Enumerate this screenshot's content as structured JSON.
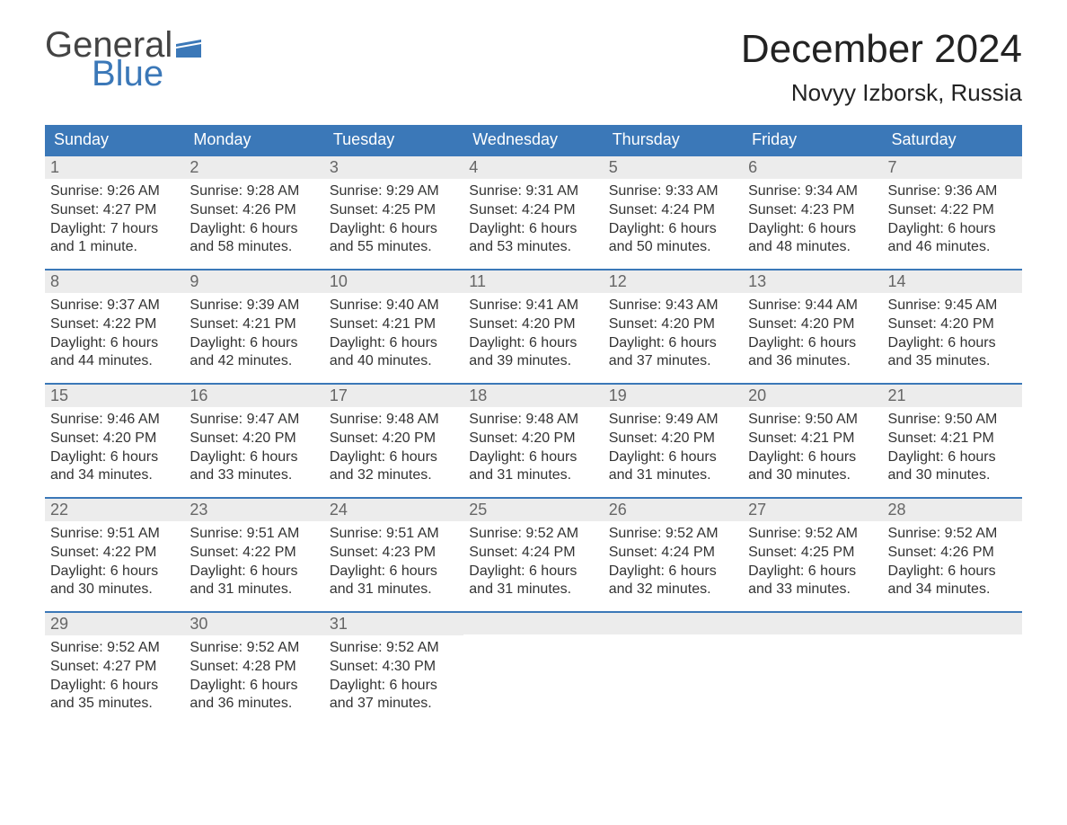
{
  "logo": {
    "text_top": "General",
    "text_bottom": "Blue",
    "flag_color": "#3b78b8"
  },
  "title": "December 2024",
  "location": "Novyy Izborsk, Russia",
  "colors": {
    "header_bg": "#3b78b8",
    "header_text": "#ffffff",
    "daynum_bg": "#ececec",
    "border": "#3b78b8",
    "body_text": "#333333"
  },
  "weekdays": [
    "Sunday",
    "Monday",
    "Tuesday",
    "Wednesday",
    "Thursday",
    "Friday",
    "Saturday"
  ],
  "weeks": [
    [
      {
        "n": "1",
        "sr": "9:26 AM",
        "ss": "4:27 PM",
        "dl": "7 hours and 1 minute."
      },
      {
        "n": "2",
        "sr": "9:28 AM",
        "ss": "4:26 PM",
        "dl": "6 hours and 58 minutes."
      },
      {
        "n": "3",
        "sr": "9:29 AM",
        "ss": "4:25 PM",
        "dl": "6 hours and 55 minutes."
      },
      {
        "n": "4",
        "sr": "9:31 AM",
        "ss": "4:24 PM",
        "dl": "6 hours and 53 minutes."
      },
      {
        "n": "5",
        "sr": "9:33 AM",
        "ss": "4:24 PM",
        "dl": "6 hours and 50 minutes."
      },
      {
        "n": "6",
        "sr": "9:34 AM",
        "ss": "4:23 PM",
        "dl": "6 hours and 48 minutes."
      },
      {
        "n": "7",
        "sr": "9:36 AM",
        "ss": "4:22 PM",
        "dl": "6 hours and 46 minutes."
      }
    ],
    [
      {
        "n": "8",
        "sr": "9:37 AM",
        "ss": "4:22 PM",
        "dl": "6 hours and 44 minutes."
      },
      {
        "n": "9",
        "sr": "9:39 AM",
        "ss": "4:21 PM",
        "dl": "6 hours and 42 minutes."
      },
      {
        "n": "10",
        "sr": "9:40 AM",
        "ss": "4:21 PM",
        "dl": "6 hours and 40 minutes."
      },
      {
        "n": "11",
        "sr": "9:41 AM",
        "ss": "4:20 PM",
        "dl": "6 hours and 39 minutes."
      },
      {
        "n": "12",
        "sr": "9:43 AM",
        "ss": "4:20 PM",
        "dl": "6 hours and 37 minutes."
      },
      {
        "n": "13",
        "sr": "9:44 AM",
        "ss": "4:20 PM",
        "dl": "6 hours and 36 minutes."
      },
      {
        "n": "14",
        "sr": "9:45 AM",
        "ss": "4:20 PM",
        "dl": "6 hours and 35 minutes."
      }
    ],
    [
      {
        "n": "15",
        "sr": "9:46 AM",
        "ss": "4:20 PM",
        "dl": "6 hours and 34 minutes."
      },
      {
        "n": "16",
        "sr": "9:47 AM",
        "ss": "4:20 PM",
        "dl": "6 hours and 33 minutes."
      },
      {
        "n": "17",
        "sr": "9:48 AM",
        "ss": "4:20 PM",
        "dl": "6 hours and 32 minutes."
      },
      {
        "n": "18",
        "sr": "9:48 AM",
        "ss": "4:20 PM",
        "dl": "6 hours and 31 minutes."
      },
      {
        "n": "19",
        "sr": "9:49 AM",
        "ss": "4:20 PM",
        "dl": "6 hours and 31 minutes."
      },
      {
        "n": "20",
        "sr": "9:50 AM",
        "ss": "4:21 PM",
        "dl": "6 hours and 30 minutes."
      },
      {
        "n": "21",
        "sr": "9:50 AM",
        "ss": "4:21 PM",
        "dl": "6 hours and 30 minutes."
      }
    ],
    [
      {
        "n": "22",
        "sr": "9:51 AM",
        "ss": "4:22 PM",
        "dl": "6 hours and 30 minutes."
      },
      {
        "n": "23",
        "sr": "9:51 AM",
        "ss": "4:22 PM",
        "dl": "6 hours and 31 minutes."
      },
      {
        "n": "24",
        "sr": "9:51 AM",
        "ss": "4:23 PM",
        "dl": "6 hours and 31 minutes."
      },
      {
        "n": "25",
        "sr": "9:52 AM",
        "ss": "4:24 PM",
        "dl": "6 hours and 31 minutes."
      },
      {
        "n": "26",
        "sr": "9:52 AM",
        "ss": "4:24 PM",
        "dl": "6 hours and 32 minutes."
      },
      {
        "n": "27",
        "sr": "9:52 AM",
        "ss": "4:25 PM",
        "dl": "6 hours and 33 minutes."
      },
      {
        "n": "28",
        "sr": "9:52 AM",
        "ss": "4:26 PM",
        "dl": "6 hours and 34 minutes."
      }
    ],
    [
      {
        "n": "29",
        "sr": "9:52 AM",
        "ss": "4:27 PM",
        "dl": "6 hours and 35 minutes."
      },
      {
        "n": "30",
        "sr": "9:52 AM",
        "ss": "4:28 PM",
        "dl": "6 hours and 36 minutes."
      },
      {
        "n": "31",
        "sr": "9:52 AM",
        "ss": "4:30 PM",
        "dl": "6 hours and 37 minutes."
      },
      null,
      null,
      null,
      null
    ]
  ],
  "labels": {
    "sunrise": "Sunrise: ",
    "sunset": "Sunset: ",
    "daylight": "Daylight: "
  }
}
